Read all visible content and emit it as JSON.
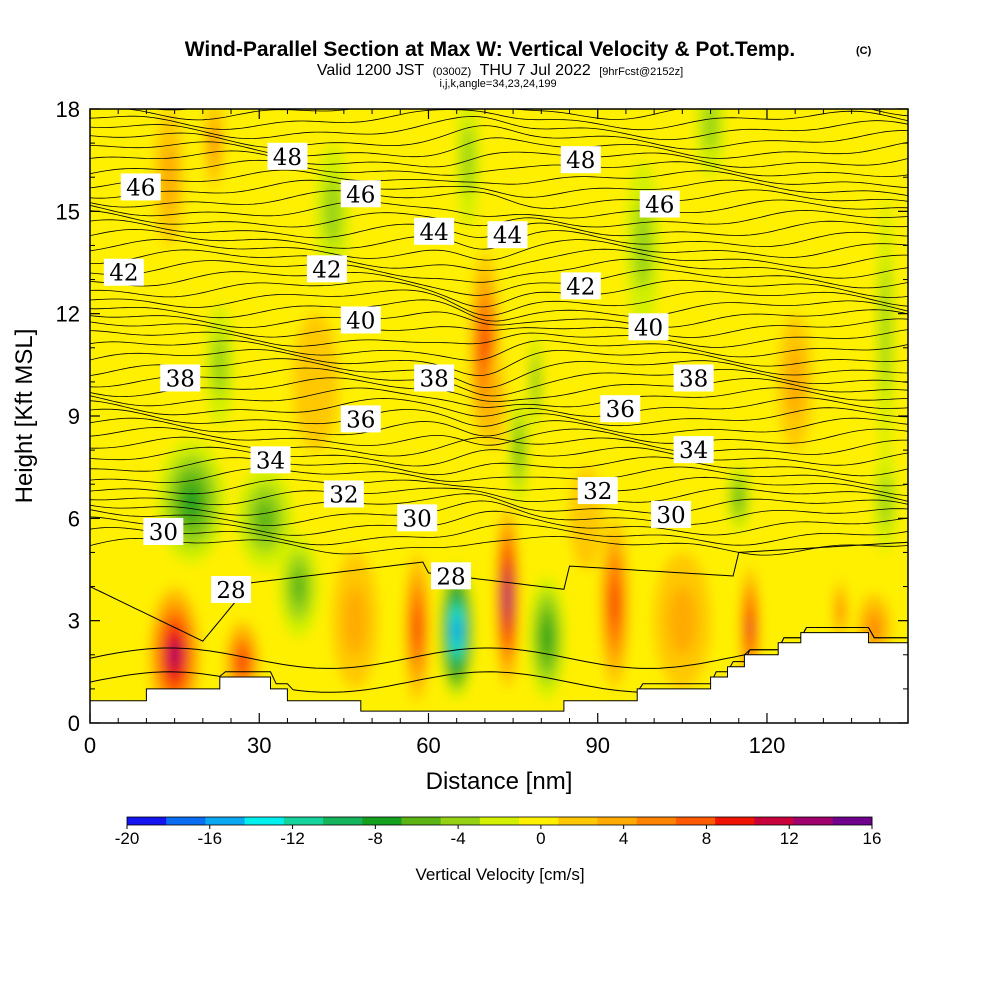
{
  "chart_data": {
    "type": "heatmap",
    "title": "Wind-Parallel Section at Max W: Vertical Velocity & Pot.Temp.",
    "title_mark": "(C)",
    "subtitle": {
      "main_a": "Valid 1200 JST",
      "utc": "(0300Z)",
      "main_b": "THU 7 Jul 2022",
      "forecast": "[9hrFcst@2152z]"
    },
    "grid_info": "i,j,k,angle=34,23,24,199",
    "xlabel": "Distance [nm]",
    "ylabel": "Height [Kft MSL]",
    "xlim": [
      0,
      145
    ],
    "ylim": [
      0,
      18
    ],
    "xticks": [
      0,
      30,
      60,
      90,
      120
    ],
    "yticks": [
      0,
      3,
      6,
      9,
      12,
      15,
      18
    ],
    "colorbar": {
      "title": "Vertical Velocity [cm/s]",
      "ticks": [
        -20,
        -16,
        -12,
        -8,
        -4,
        0,
        4,
        8,
        12,
        16
      ],
      "levels": [
        -20,
        -18,
        -16,
        -14,
        -12,
        -10,
        -8,
        -6,
        -4,
        -2,
        0,
        2,
        4,
        6,
        8,
        10,
        12,
        14,
        16
      ],
      "colors": [
        "#1414f0",
        "#0a6cf0",
        "#0aa8f0",
        "#00f0f0",
        "#14d49c",
        "#14b45c",
        "#14a01e",
        "#5ab414",
        "#96d214",
        "#d2f000",
        "#fff000",
        "#ffc800",
        "#ffaa00",
        "#ff8200",
        "#ff5a00",
        "#f01400",
        "#c8003c",
        "#a0006e",
        "#6e008c"
      ]
    },
    "vertical_velocity_features": [
      {
        "x": 15,
        "y": 2.0,
        "rx": 4.5,
        "ry": 2.0,
        "w": 14
      },
      {
        "x": 27,
        "y": 1.8,
        "rx": 3.0,
        "ry": 1.2,
        "w": 10
      },
      {
        "x": 58,
        "y": 2.8,
        "rx": 2.2,
        "ry": 2.2,
        "w": 10
      },
      {
        "x": 65,
        "y": 2.7,
        "rx": 3.0,
        "ry": 2.0,
        "w": -18
      },
      {
        "x": 74,
        "y": 3.7,
        "rx": 2.0,
        "ry": 2.7,
        "w": 15
      },
      {
        "x": 81,
        "y": 2.5,
        "rx": 3.2,
        "ry": 1.8,
        "w": -8
      },
      {
        "x": 93,
        "y": 3.5,
        "rx": 2.5,
        "ry": 2.5,
        "w": 10
      },
      {
        "x": 117,
        "y": 2.8,
        "rx": 1.6,
        "ry": 1.8,
        "w": 12
      },
      {
        "x": 133,
        "y": 3.3,
        "rx": 1.0,
        "ry": 0.9,
        "w": 8
      },
      {
        "x": 70,
        "y": 11.0,
        "rx": 2.6,
        "ry": 2.8,
        "w": 9
      },
      {
        "x": 72,
        "y": 9.5,
        "rx": 1.5,
        "ry": 1.5,
        "w": 4
      },
      {
        "x": 76,
        "y": 8.0,
        "rx": 1.6,
        "ry": 1.6,
        "w": -6
      },
      {
        "x": 79,
        "y": 10.0,
        "rx": 1.0,
        "ry": 1.5,
        "w": -5
      },
      {
        "x": 18,
        "y": 6.5,
        "rx": 6.0,
        "ry": 1.8,
        "w": -7
      },
      {
        "x": 31,
        "y": 6.0,
        "rx": 5.0,
        "ry": 1.5,
        "w": -6
      },
      {
        "x": 37,
        "y": 4.0,
        "rx": 3.5,
        "ry": 1.5,
        "w": -6
      },
      {
        "x": 23,
        "y": 10.5,
        "rx": 2.5,
        "ry": 1.8,
        "w": -4
      },
      {
        "x": 67,
        "y": 16.5,
        "rx": 2.0,
        "ry": 2.0,
        "w": -4
      },
      {
        "x": 110,
        "y": 17.5,
        "rx": 2.5,
        "ry": 1.5,
        "w": -4
      },
      {
        "x": 98,
        "y": 14.0,
        "rx": 3.0,
        "ry": 2.5,
        "w": -3
      },
      {
        "x": 141,
        "y": 11.5,
        "rx": 1.5,
        "ry": 4.0,
        "w": -4
      },
      {
        "x": 115,
        "y": 6.6,
        "rx": 2.0,
        "ry": 1.0,
        "w": -5
      },
      {
        "x": 141,
        "y": 6.5,
        "rx": 2.0,
        "ry": 1.5,
        "w": -3
      },
      {
        "x": 43,
        "y": 15.0,
        "rx": 3.0,
        "ry": 2.0,
        "w": -3
      },
      {
        "x": 14,
        "y": 16.0,
        "rx": 2.5,
        "ry": 2.0,
        "w": 3
      },
      {
        "x": 22,
        "y": 17.0,
        "rx": 1.5,
        "ry": 1.3,
        "w": 5
      },
      {
        "x": 125,
        "y": 10.0,
        "rx": 3.0,
        "ry": 2.0,
        "w": 3
      },
      {
        "x": 40,
        "y": 10.0,
        "rx": 4.0,
        "ry": 2.0,
        "w": 2
      },
      {
        "x": 88,
        "y": 6.0,
        "rx": 3.0,
        "ry": 1.5,
        "w": 2
      },
      {
        "x": 47,
        "y": 3.0,
        "rx": 4.0,
        "ry": 2.0,
        "w": 3
      },
      {
        "x": 105,
        "y": 3.0,
        "rx": 5.0,
        "ry": 2.0,
        "w": 3
      },
      {
        "x": 139,
        "y": 2.8,
        "rx": 3.0,
        "ry": 1.0,
        "w": 6
      }
    ],
    "potential_temperature": {
      "label_values": [
        28,
        30,
        32,
        34,
        36,
        38,
        40,
        42,
        44,
        46,
        48
      ],
      "labels": [
        {
          "value": "28",
          "x": 25,
          "y": 3.9
        },
        {
          "value": "28",
          "x": 64,
          "y": 4.3
        },
        {
          "value": "30",
          "x": 13,
          "y": 5.6
        },
        {
          "value": "30",
          "x": 58,
          "y": 6.0
        },
        {
          "value": "30",
          "x": 103,
          "y": 6.1
        },
        {
          "value": "32",
          "x": 45,
          "y": 6.7
        },
        {
          "value": "32",
          "x": 90,
          "y": 6.8
        },
        {
          "value": "34",
          "x": 32,
          "y": 7.7
        },
        {
          "value": "34",
          "x": 107,
          "y": 8.0
        },
        {
          "value": "36",
          "x": 48,
          "y": 8.9
        },
        {
          "value": "36",
          "x": 94,
          "y": 9.2
        },
        {
          "value": "38",
          "x": 16,
          "y": 10.1
        },
        {
          "value": "38",
          "x": 61,
          "y": 10.1
        },
        {
          "value": "38",
          "x": 107,
          "y": 10.1
        },
        {
          "value": "40",
          "x": 48,
          "y": 11.8
        },
        {
          "value": "40",
          "x": 99,
          "y": 11.6
        },
        {
          "value": "42",
          "x": 6,
          "y": 13.2
        },
        {
          "value": "42",
          "x": 42,
          "y": 13.3
        },
        {
          "value": "42",
          "x": 87,
          "y": 12.8
        },
        {
          "value": "44",
          "x": 61,
          "y": 14.4
        },
        {
          "value": "44",
          "x": 74,
          "y": 14.3
        },
        {
          "value": "46",
          "x": 9,
          "y": 15.7
        },
        {
          "value": "46",
          "x": 48,
          "y": 15.5
        },
        {
          "value": "46",
          "x": 101,
          "y": 15.2
        },
        {
          "value": "48",
          "x": 35,
          "y": 16.6
        },
        {
          "value": "48",
          "x": 87,
          "y": 16.5
        }
      ]
    },
    "terrain": [
      [
        0,
        0.65
      ],
      [
        10,
        0.65
      ],
      [
        10,
        1.0
      ],
      [
        23,
        1.0
      ],
      [
        23,
        1.35
      ],
      [
        32,
        1.35
      ],
      [
        32,
        1.0
      ],
      [
        35,
        1.0
      ],
      [
        35,
        0.65
      ],
      [
        48,
        0.65
      ],
      [
        48,
        0.35
      ],
      [
        60,
        0.35
      ],
      [
        60,
        0.35
      ],
      [
        75,
        0.35
      ],
      [
        75,
        0.35
      ],
      [
        84,
        0.35
      ],
      [
        84,
        0.65
      ],
      [
        97,
        0.65
      ],
      [
        97,
        1.0
      ],
      [
        110,
        1.0
      ],
      [
        110,
        1.35
      ],
      [
        113,
        1.35
      ],
      [
        113,
        1.65
      ],
      [
        116,
        1.65
      ],
      [
        116,
        2.0
      ],
      [
        122,
        2.0
      ],
      [
        122,
        2.35
      ],
      [
        126,
        2.35
      ],
      [
        126,
        2.65
      ],
      [
        138,
        2.65
      ],
      [
        138,
        2.35
      ],
      [
        145,
        2.35
      ]
    ]
  }
}
